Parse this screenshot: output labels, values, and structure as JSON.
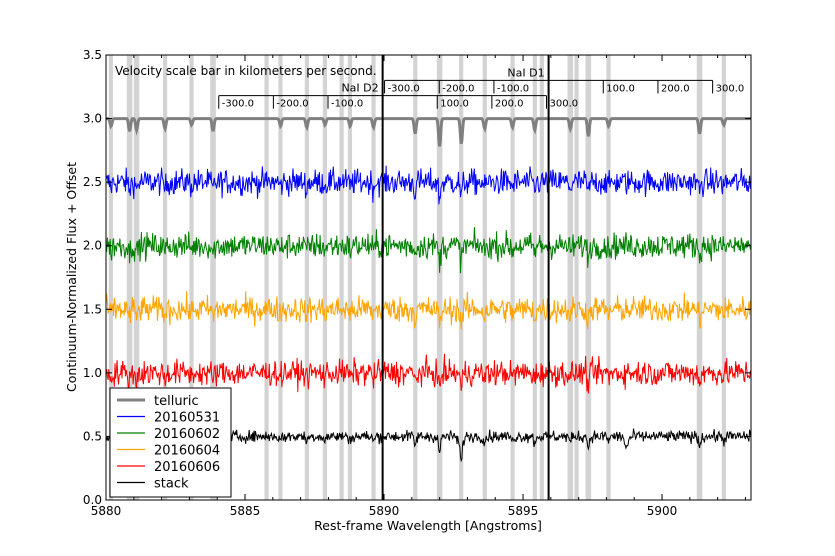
{
  "chart_data": {
    "type": "line",
    "xlabel": "Rest-frame Wavelength [Angstroms]",
    "ylabel": "Continuum-Normalized Flux + Offset",
    "xlim": [
      5880,
      5903.2
    ],
    "ylim": [
      0.0,
      3.5
    ],
    "x_ticks": [
      "5880",
      "5885",
      "5890",
      "5895",
      "5900"
    ],
    "x_tick_values": [
      5880,
      5885,
      5890,
      5895,
      5900
    ],
    "y_ticks": [
      "0.0",
      "0.5",
      "1.0",
      "1.5",
      "2.0",
      "2.5",
      "3.0",
      "3.5"
    ],
    "y_tick_values": [
      0.0,
      0.5,
      1.0,
      1.5,
      2.0,
      2.5,
      3.0,
      3.5
    ],
    "grid": false,
    "legend_position": "bottom-left",
    "annotation": "Velocity scale bar in kilometers per second.",
    "na_lines": [
      {
        "name": "NaI D2",
        "wavelength": 5889.95
      },
      {
        "name": "NaI D1",
        "wavelength": 5895.92
      }
    ],
    "velocity_scales": [
      {
        "line": "NaI D2",
        "center": 5889.95,
        "y": 3.18,
        "ticks": [
          {
            "v": -300,
            "label": "-300.0"
          },
          {
            "v": -200,
            "label": "-200.0"
          },
          {
            "v": -100,
            "label": "-100.0"
          },
          {
            "v": 100,
            "label": "100.0"
          },
          {
            "v": 200,
            "label": "200.0"
          },
          {
            "v": 300,
            "label": "300.0"
          }
        ]
      },
      {
        "line": "NaI D1",
        "center": 5895.92,
        "y": 3.3,
        "ticks": [
          {
            "v": -300,
            "label": "-300.0"
          },
          {
            "v": -200,
            "label": "-200.0"
          },
          {
            "v": -100,
            "label": "-100.0"
          },
          {
            "v": 100,
            "label": "100.0"
          },
          {
            "v": 200,
            "label": "200.0"
          },
          {
            "v": 300,
            "label": "300.0"
          }
        ]
      }
    ],
    "telluric_bands": [
      [
        5880.1,
        5880.25
      ],
      [
        5880.75,
        5880.95
      ],
      [
        5881.0,
        5881.2
      ],
      [
        5882.05,
        5882.2
      ],
      [
        5883.0,
        5883.15
      ],
      [
        5883.75,
        5883.95
      ],
      [
        5885.7,
        5885.85
      ],
      [
        5886.2,
        5886.35
      ],
      [
        5887.15,
        5887.3
      ],
      [
        5887.8,
        5887.95
      ],
      [
        5888.4,
        5888.55
      ],
      [
        5888.7,
        5888.85
      ],
      [
        5889.55,
        5889.7
      ],
      [
        5891.05,
        5891.2
      ],
      [
        5891.9,
        5892.1
      ],
      [
        5892.7,
        5892.85
      ],
      [
        5893.55,
        5893.7
      ],
      [
        5894.55,
        5894.7
      ],
      [
        5895.35,
        5895.5
      ],
      [
        5895.6,
        5895.75
      ],
      [
        5896.6,
        5896.8
      ],
      [
        5896.85,
        5897.0
      ],
      [
        5897.25,
        5897.45
      ],
      [
        5898.0,
        5898.15
      ],
      [
        5901.25,
        5901.45
      ],
      [
        5902.15,
        5902.3
      ]
    ],
    "telluric_absorption": [
      {
        "x": 5880.18,
        "depth": 0.06
      },
      {
        "x": 5880.85,
        "depth": 0.1
      },
      {
        "x": 5881.1,
        "depth": 0.09
      },
      {
        "x": 5882.12,
        "depth": 0.08
      },
      {
        "x": 5883.08,
        "depth": 0.05
      },
      {
        "x": 5883.85,
        "depth": 0.1
      },
      {
        "x": 5886.28,
        "depth": 0.06
      },
      {
        "x": 5887.22,
        "depth": 0.07
      },
      {
        "x": 5887.88,
        "depth": 0.05
      },
      {
        "x": 5888.78,
        "depth": 0.06
      },
      {
        "x": 5889.62,
        "depth": 0.07
      },
      {
        "x": 5891.12,
        "depth": 0.12
      },
      {
        "x": 5892.0,
        "depth": 0.22
      },
      {
        "x": 5892.78,
        "depth": 0.2
      },
      {
        "x": 5893.62,
        "depth": 0.08
      },
      {
        "x": 5894.62,
        "depth": 0.07
      },
      {
        "x": 5895.42,
        "depth": 0.09
      },
      {
        "x": 5896.7,
        "depth": 0.08
      },
      {
        "x": 5897.35,
        "depth": 0.14
      },
      {
        "x": 5898.08,
        "depth": 0.06
      },
      {
        "x": 5901.35,
        "depth": 0.12
      },
      {
        "x": 5902.22,
        "depth": 0.05
      }
    ],
    "series": [
      {
        "name": "telluric",
        "color": "#808080",
        "offset": 3.0,
        "noise": 0.0,
        "width": 3
      },
      {
        "name": "20160531",
        "color": "#0000ff",
        "offset": 2.5,
        "noise": 0.1,
        "width": 1
      },
      {
        "name": "20160602",
        "color": "#008000",
        "offset": 2.0,
        "noise": 0.1,
        "width": 1
      },
      {
        "name": "20160604",
        "color": "#ffa500",
        "offset": 1.5,
        "noise": 0.1,
        "width": 1
      },
      {
        "name": "20160606",
        "color": "#ff0000",
        "offset": 1.0,
        "noise": 0.1,
        "width": 1
      },
      {
        "name": "stack",
        "color": "#000000",
        "offset": 0.5,
        "noise": 0.045,
        "width": 1
      }
    ]
  }
}
